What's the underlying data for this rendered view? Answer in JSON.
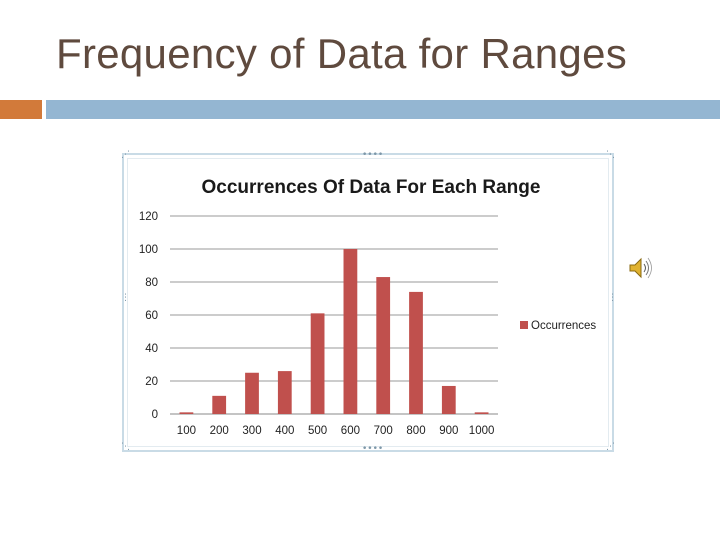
{
  "slide": {
    "title": "Frequency of Data for Ranges"
  },
  "colors": {
    "accent_orange": "#d27a3a",
    "accent_blue": "#94b6d2",
    "bar_color": "#c0504d",
    "title_color": "#5f4a3e"
  },
  "icons": {
    "speaker": "speaker-icon"
  },
  "chart_data": {
    "type": "bar",
    "title": "Occurrences Of Data For Each Range",
    "categories": [
      "100",
      "200",
      "300",
      "400",
      "500",
      "600",
      "700",
      "800",
      "900",
      "1000"
    ],
    "series": [
      {
        "name": "Occurrences",
        "values": [
          1,
          11,
          25,
          26,
          61,
          100,
          83,
          74,
          17,
          1
        ]
      }
    ],
    "xlabel": "",
    "ylabel": "",
    "ylim": [
      0,
      120
    ],
    "yticks": [
      "0",
      "20",
      "40",
      "60",
      "80",
      "100",
      "120"
    ],
    "grid": true,
    "legend": "right"
  }
}
